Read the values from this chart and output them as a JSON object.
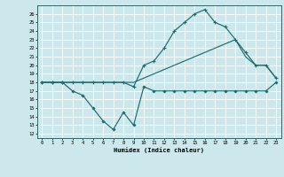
{
  "xlabel": "Humidex (Indice chaleur)",
  "bg_color": "#cce8ec",
  "grid_color": "#aacccc",
  "line_color": "#1a6e6e",
  "xlim": [
    -0.5,
    23.5
  ],
  "ylim": [
    11.5,
    27
  ],
  "yticks": [
    12,
    13,
    14,
    15,
    16,
    17,
    18,
    19,
    20,
    21,
    22,
    23,
    24,
    25,
    26
  ],
  "xticks": [
    0,
    1,
    2,
    3,
    4,
    5,
    6,
    7,
    8,
    9,
    10,
    11,
    12,
    13,
    14,
    15,
    16,
    17,
    18,
    19,
    20,
    21,
    22,
    23
  ],
  "line1_x": [
    0,
    1,
    2,
    3,
    4,
    5,
    6,
    7,
    8,
    9,
    10,
    11,
    12,
    13,
    14,
    15,
    16,
    17,
    18,
    19,
    20,
    21,
    22,
    23
  ],
  "line1_y": [
    18,
    18,
    18,
    17,
    16.5,
    15,
    13.5,
    12.5,
    14.5,
    13,
    17.5,
    17,
    17,
    17,
    17,
    17,
    17,
    17,
    17,
    17,
    17,
    17,
    17,
    18
  ],
  "line2_x": [
    0,
    1,
    2,
    3,
    4,
    5,
    6,
    7,
    8,
    9,
    10,
    11,
    12,
    13,
    14,
    15,
    16,
    17,
    18,
    19,
    20,
    21,
    22,
    23
  ],
  "line2_y": [
    18,
    18,
    18,
    18,
    18,
    18,
    18,
    18,
    18,
    17.5,
    20,
    20.5,
    22,
    24,
    25,
    26,
    26.5,
    25,
    24.5,
    23,
    21.5,
    20,
    20,
    18.5
  ],
  "line3_x": [
    0,
    1,
    2,
    3,
    4,
    5,
    6,
    7,
    8,
    9,
    10,
    11,
    12,
    13,
    14,
    15,
    16,
    17,
    18,
    19,
    20,
    21,
    22,
    23
  ],
  "line3_y": [
    18,
    18,
    18,
    18,
    18,
    18,
    18,
    18,
    18,
    18,
    18.5,
    19,
    19.5,
    20,
    20.5,
    21,
    21.5,
    22,
    22.5,
    23,
    21,
    20,
    20,
    18.5
  ]
}
